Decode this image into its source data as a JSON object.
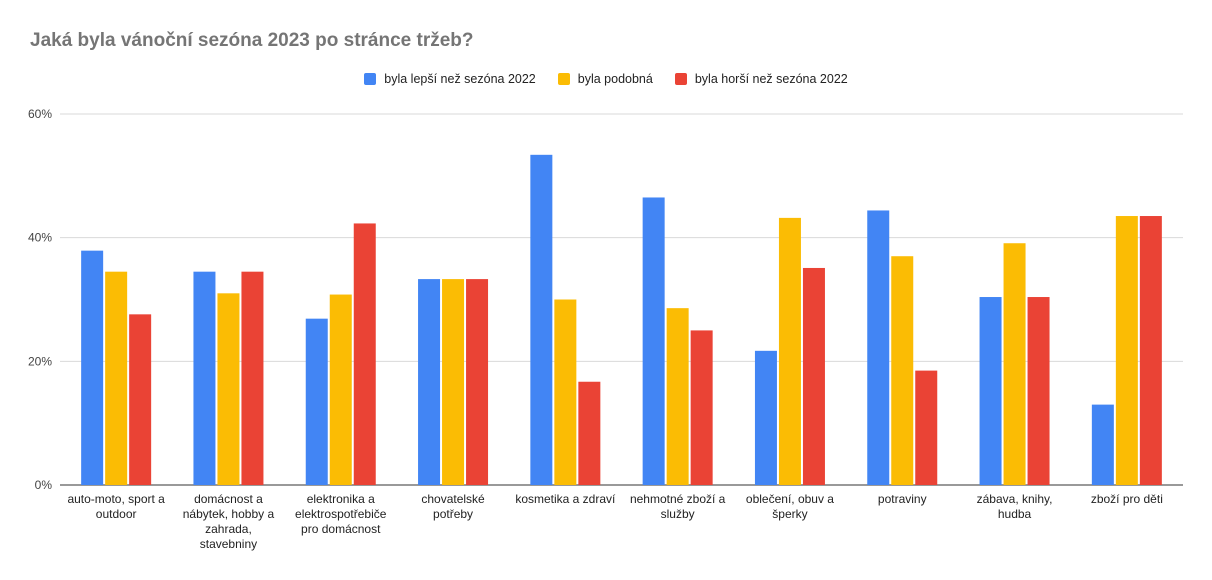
{
  "chart_data": {
    "type": "bar",
    "title": "Jaká byla vánoční sezóna 2023 po stránce tržeb?",
    "xlabel": "",
    "ylabel": "",
    "ylim": [
      0,
      60
    ],
    "yticks": [
      "0%",
      "20%",
      "40%",
      "60%"
    ],
    "ytick_values": [
      0,
      20,
      40,
      60
    ],
    "grid": true,
    "legend_position": "top",
    "categories": [
      [
        "auto-moto, sport a",
        "outdoor"
      ],
      [
        "domácnost a",
        "nábytek, hobby a",
        "zahrada,",
        "stavebniny"
      ],
      [
        "elektronika a",
        "elektrospotřebiče",
        "pro domácnost"
      ],
      [
        "chovatelské",
        "potřeby"
      ],
      [
        "kosmetika a zdraví"
      ],
      [
        "nehmotné zboží a",
        "služby"
      ],
      [
        "oblečení, obuv a",
        "šperky"
      ],
      [
        "potraviny"
      ],
      [
        "zábava, knihy,",
        "hudba"
      ],
      [
        "zboží pro děti"
      ]
    ],
    "series": [
      {
        "name": "byla lepší než sezóna 2022",
        "color": "#4285F4",
        "values": [
          37.9,
          34.5,
          26.9,
          33.3,
          53.4,
          46.5,
          21.7,
          44.4,
          30.4,
          13.0
        ]
      },
      {
        "name": "byla podobná",
        "color": "#FBBC04",
        "values": [
          34.5,
          31.0,
          30.8,
          33.3,
          30.0,
          28.6,
          43.2,
          37.0,
          39.1,
          43.5
        ]
      },
      {
        "name": "byla horší než sezóna 2022",
        "color": "#EA4335",
        "values": [
          27.6,
          34.5,
          42.3,
          33.3,
          16.7,
          25.0,
          35.1,
          18.5,
          30.4,
          43.5
        ]
      }
    ]
  }
}
